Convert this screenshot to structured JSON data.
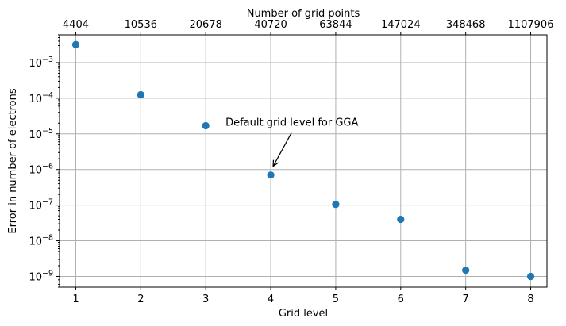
{
  "chart_data": {
    "type": "scatter",
    "title": "",
    "xlabel": "Grid level",
    "ylabel": "Error in number of electrons",
    "secondary_xlabel": "Number of grid points",
    "x": [
      1,
      2,
      3,
      4,
      5,
      6,
      7,
      8
    ],
    "y": [
      0.0032,
      0.000125,
      1.7e-05,
      7e-07,
      1.05e-07,
      4e-08,
      1.5e-09,
      1e-09
    ],
    "xlim": [
      0.75,
      8.25
    ],
    "ylim": [
      5e-10,
      0.006
    ],
    "yscale": "log",
    "x_ticks": [
      "1",
      "2",
      "3",
      "4",
      "5",
      "6",
      "7",
      "8"
    ],
    "secondary_x_ticks": [
      "4404",
      "10536",
      "20678",
      "40720",
      "63844",
      "147024",
      "348468",
      "1107906"
    ],
    "y_ticks": [
      {
        "base": "10",
        "exp": "−9"
      },
      {
        "base": "10",
        "exp": "−8"
      },
      {
        "base": "10",
        "exp": "−7"
      },
      {
        "base": "10",
        "exp": "−6"
      },
      {
        "base": "10",
        "exp": "−5"
      },
      {
        "base": "10",
        "exp": "−4"
      },
      {
        "base": "10",
        "exp": "−3"
      }
    ],
    "grid": true,
    "marker_color": "#1f77b4",
    "annotation": {
      "text": "Default grid level for GGA",
      "target_x": 4,
      "target_y": 7e-07
    }
  }
}
